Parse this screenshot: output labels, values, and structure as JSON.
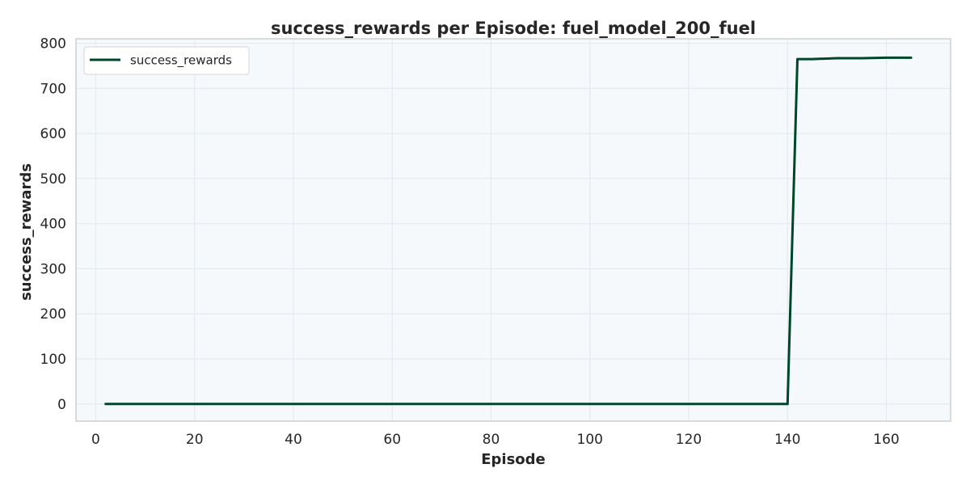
{
  "chart_data": {
    "type": "line",
    "title": "success_rewards per Episode: fuel_model_200_fuel",
    "xlabel": "Episode",
    "ylabel": "success_rewards",
    "xlim": [
      -4,
      173
    ],
    "ylim": [
      -38,
      810
    ],
    "xticks": [
      0,
      20,
      40,
      60,
      80,
      100,
      120,
      140,
      160
    ],
    "yticks": [
      0,
      100,
      200,
      300,
      400,
      500,
      600,
      700,
      800
    ],
    "grid": true,
    "legend_position": "top-left",
    "colors": {
      "line": "#00472a",
      "plot_bg": "#f5f9fc",
      "grid": "#e3e8ec",
      "spine": "#cfcfcf"
    },
    "series": [
      {
        "name": "success_rewards",
        "x": [
          2,
          20,
          40,
          60,
          80,
          100,
          120,
          140,
          142,
          145,
          150,
          155,
          160,
          165
        ],
        "y": [
          0,
          0,
          0,
          0,
          0,
          0,
          0,
          0,
          765,
          765,
          767,
          767,
          768,
          768
        ]
      }
    ]
  }
}
